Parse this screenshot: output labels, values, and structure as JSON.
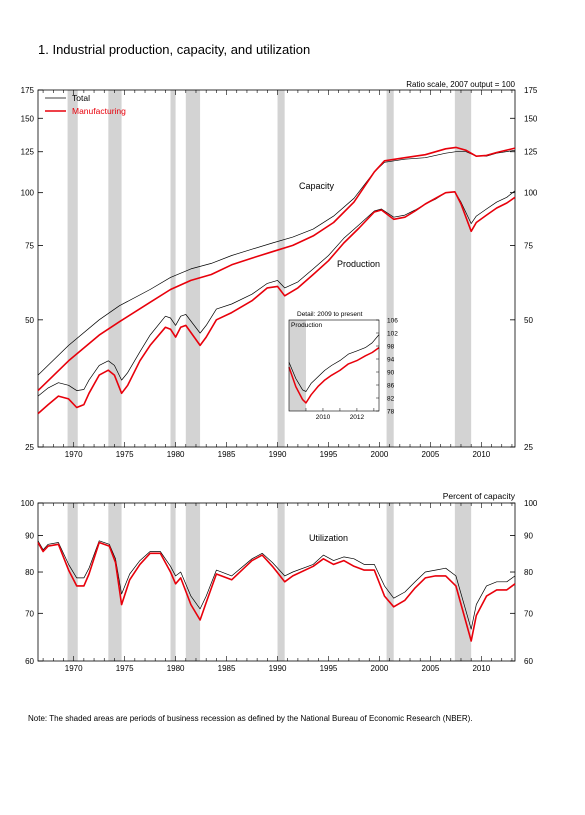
{
  "page": {
    "title": "1.  Industrial production, capacity, and utilization",
    "note": "Note: The shaded areas are periods of business recession as defined by the National Bureau of Economic Research (NBER)."
  },
  "colors": {
    "total": "#000000",
    "manufacturing": "#e8000b",
    "recession": "#d3d3d3",
    "axis": "#000000"
  },
  "chart_data": [
    {
      "type": "line",
      "subtitle": "Ratio scale, 2007 output = 100",
      "scale": "log",
      "ylim": [
        25,
        175
      ],
      "xlim": [
        1967,
        2013.8
      ],
      "y_ticks": [
        25,
        50,
        75,
        100,
        125,
        150,
        175
      ],
      "x_ticks": [
        1970,
        1975,
        1980,
        1985,
        1990,
        1995,
        2000,
        2005,
        2010
      ],
      "legend": {
        "placement": "top-left",
        "entries": [
          "Total",
          "Manufacturing"
        ]
      },
      "annotations": [
        "Capacity",
        "Production"
      ],
      "recessions": [
        [
          1969.9,
          1970.9
        ],
        [
          1973.9,
          1975.2
        ],
        [
          1980.0,
          1980.5
        ],
        [
          1981.5,
          1982.9
        ],
        [
          1990.5,
          1991.2
        ],
        [
          2001.2,
          2001.9
        ],
        [
          2007.9,
          2009.5
        ]
      ],
      "series": [
        {
          "name": "Total",
          "kind": "capacity",
          "x": [
            1967,
            1970,
            1973,
            1975,
            1978,
            1980,
            1982,
            1984,
            1986,
            1988,
            1990,
            1992,
            1994,
            1996,
            1998,
            2000,
            2001,
            2003,
            2005,
            2007,
            2008,
            2009,
            2010,
            2011,
            2012,
            2013.8
          ],
          "values": [
            37,
            43.5,
            50,
            54,
            59,
            63,
            66,
            68,
            71,
            73.5,
            76,
            78.5,
            82,
            88,
            97,
            112,
            118,
            120,
            121,
            124,
            125,
            125,
            122,
            122,
            124,
            126
          ]
        },
        {
          "name": "Manufacturing",
          "kind": "capacity",
          "x": [
            1967,
            1970,
            1973,
            1975,
            1978,
            1980,
            1982,
            1984,
            1986,
            1988,
            1990,
            1992,
            1994,
            1996,
            1998,
            2000,
            2001,
            2003,
            2005,
            2007,
            2008,
            2009,
            2010,
            2011,
            2012,
            2013.8
          ],
          "values": [
            34,
            40,
            46,
            49.5,
            55,
            59,
            62,
            64,
            67.5,
            70,
            72.5,
            75,
            79,
            85,
            95,
            112,
            119,
            121,
            123,
            127,
            128,
            126,
            122,
            122.5,
            124.5,
            127.5
          ]
        },
        {
          "name": "Total",
          "kind": "production",
          "x": [
            1967,
            1968,
            1969,
            1970,
            1970.8,
            1971.5,
            1972,
            1973,
            1973.9,
            1974.5,
            1975.2,
            1975.8,
            1977,
            1978,
            1979.5,
            1980,
            1980.5,
            1981,
            1981.5,
            1982.9,
            1983.5,
            1984.5,
            1986,
            1988,
            1989.5,
            1990.5,
            1991.2,
            1992.5,
            1994,
            1995.5,
            1997,
            1998.5,
            2000,
            2000.7,
            2001.9,
            2003,
            2004,
            2005,
            2006,
            2007,
            2007.9,
            2008.5,
            2009.5,
            2010,
            2011,
            2012,
            2013,
            2013.8
          ],
          "values": [
            33,
            34.5,
            35.5,
            35,
            34,
            34.2,
            36,
            39,
            40,
            39,
            36,
            37.5,
            42,
            46,
            51,
            50.5,
            48.5,
            51,
            51.5,
            46.5,
            48.5,
            53,
            54.5,
            57.5,
            61,
            62,
            59.5,
            61.5,
            66,
            71,
            78,
            84,
            90.5,
            91.5,
            87.5,
            88.5,
            91,
            94,
            96.5,
            100,
            100.5,
            95,
            84.5,
            88,
            91.5,
            95,
            97.5,
            101
          ]
        },
        {
          "name": "Manufacturing",
          "kind": "production",
          "x": [
            1967,
            1968,
            1969,
            1970,
            1970.8,
            1971.5,
            1972,
            1973,
            1973.9,
            1974.5,
            1975.2,
            1975.8,
            1977,
            1978,
            1979.5,
            1980,
            1980.5,
            1981,
            1981.5,
            1982.9,
            1983.5,
            1984.5,
            1986,
            1988,
            1989.5,
            1990.5,
            1991.2,
            1992.5,
            1994,
            1995.5,
            1997,
            1998.5,
            2000,
            2000.7,
            2001.9,
            2003,
            2004,
            2005,
            2006,
            2007,
            2007.9,
            2008.5,
            2009.5,
            2010,
            2011,
            2012,
            2013,
            2013.8
          ],
          "values": [
            30,
            31.5,
            33,
            32.5,
            31,
            31.5,
            33.5,
            37,
            38,
            37,
            33.5,
            35,
            40,
            43.5,
            48,
            47.5,
            45.5,
            48,
            48.5,
            43.5,
            45.5,
            50,
            52,
            55.5,
            59.5,
            60,
            57,
            59.5,
            64,
            69,
            76,
            82.5,
            90,
            91,
            86.5,
            87.5,
            90.5,
            94,
            97,
            100,
            100.5,
            94,
            81,
            85,
            88.5,
            92,
            94.5,
            97.5
          ]
        }
      ],
      "inset": {
        "title": "Detail: 2009 to present",
        "label": "Production",
        "type": "line",
        "xlim": [
          2008.5,
          2013.8
        ],
        "ylim": [
          78,
          106
        ],
        "y_ticks": [
          78,
          82,
          86,
          90,
          94,
          98,
          102,
          106
        ],
        "x_ticks": [
          2010,
          2012
        ],
        "recession": [
          2008.5,
          2009.5
        ],
        "series": [
          {
            "name": "Total",
            "x": [
              2008.5,
              2008.9,
              2009.3,
              2009.5,
              2009.8,
              2010.2,
              2010.6,
              2011,
              2011.5,
              2012,
              2012.5,
              2013,
              2013.4,
              2013.8
            ],
            "values": [
              93,
              88,
              84.5,
              84,
              86.5,
              88.5,
              90.5,
              92,
              93.5,
              95.5,
              96.5,
              97.5,
              99,
              101.5
            ]
          },
          {
            "name": "Manufacturing",
            "x": [
              2008.5,
              2008.9,
              2009.3,
              2009.5,
              2009.8,
              2010.2,
              2010.6,
              2011,
              2011.5,
              2012,
              2012.5,
              2013,
              2013.4,
              2013.8
            ],
            "values": [
              91.5,
              85.5,
              81.5,
              80.5,
              83,
              85.5,
              87.5,
              89,
              90.5,
              92.5,
              93.5,
              95,
              96,
              97.5
            ]
          }
        ]
      }
    },
    {
      "type": "line",
      "subtitle": "Percent of capacity",
      "annotation": "Utilization",
      "ylim": [
        60,
        100
      ],
      "xlim": [
        1967,
        2013.8
      ],
      "y_ticks": [
        60,
        70,
        80,
        90,
        100
      ],
      "x_ticks": [
        1970,
        1975,
        1980,
        1985,
        1990,
        1995,
        2000,
        2005,
        2010
      ],
      "recessions": [
        [
          1969.9,
          1970.9
        ],
        [
          1973.9,
          1975.2
        ],
        [
          1980.0,
          1980.5
        ],
        [
          1981.5,
          1982.9
        ],
        [
          1990.5,
          1991.2
        ],
        [
          2001.2,
          2001.9
        ],
        [
          2007.9,
          2009.5
        ]
      ],
      "series": [
        {
          "name": "Total",
          "x": [
            1967,
            1967.5,
            1968,
            1969,
            1970,
            1970.8,
            1971.5,
            1972,
            1973,
            1974,
            1974.6,
            1975.2,
            1976,
            1977,
            1978,
            1979,
            1980,
            1980.5,
            1981,
            1982,
            1982.9,
            1983.5,
            1984.5,
            1986,
            1988,
            1989,
            1990,
            1991.2,
            1992,
            1994,
            1995,
            1996,
            1997,
            1998,
            1999,
            2000,
            2001,
            2001.9,
            2003,
            2004,
            2005,
            2006,
            2007,
            2008,
            2009.5,
            2010,
            2011,
            2012,
            2013,
            2013.8
          ],
          "values": [
            88.5,
            86,
            87.5,
            88,
            82,
            78.5,
            78.5,
            81,
            88.5,
            87.5,
            83.5,
            74.5,
            79.5,
            83,
            85.5,
            85.5,
            81.5,
            79,
            80,
            74,
            71,
            74,
            80.5,
            79,
            83.5,
            85,
            82.5,
            79,
            80,
            82,
            84.5,
            83,
            84,
            83.5,
            82,
            82,
            76.5,
            73.5,
            75,
            77.5,
            80,
            80.5,
            81,
            79,
            66.5,
            72,
            76.5,
            77.5,
            77.5,
            79
          ]
        },
        {
          "name": "Manufacturing",
          "x": [
            1967,
            1967.5,
            1968,
            1969,
            1970,
            1970.8,
            1971.5,
            1972,
            1973,
            1974,
            1974.6,
            1975.2,
            1976,
            1977,
            1978,
            1979,
            1980,
            1980.5,
            1981,
            1982,
            1982.9,
            1983.5,
            1984.5,
            1986,
            1988,
            1989,
            1990,
            1991.2,
            1992,
            1994,
            1995,
            1996,
            1997,
            1998,
            1999,
            2000,
            2001,
            2001.9,
            2003,
            2004,
            2005,
            2006,
            2007,
            2008,
            2009.5,
            2010,
            2011,
            2012,
            2013,
            2013.8
          ],
          "values": [
            88,
            85.5,
            87,
            87.5,
            80.5,
            76.5,
            76.5,
            79.5,
            88,
            87,
            82.5,
            72,
            78,
            82,
            85,
            85,
            80,
            77,
            78.5,
            72,
            68.5,
            72.5,
            79.5,
            78,
            83,
            84.5,
            81.5,
            77.5,
            79,
            81.5,
            83.5,
            82,
            83,
            81.5,
            80.5,
            80.5,
            74,
            71.5,
            73,
            76,
            78.5,
            79,
            79,
            76.5,
            64,
            69.5,
            74,
            75.5,
            75.5,
            77
          ]
        }
      ]
    }
  ]
}
